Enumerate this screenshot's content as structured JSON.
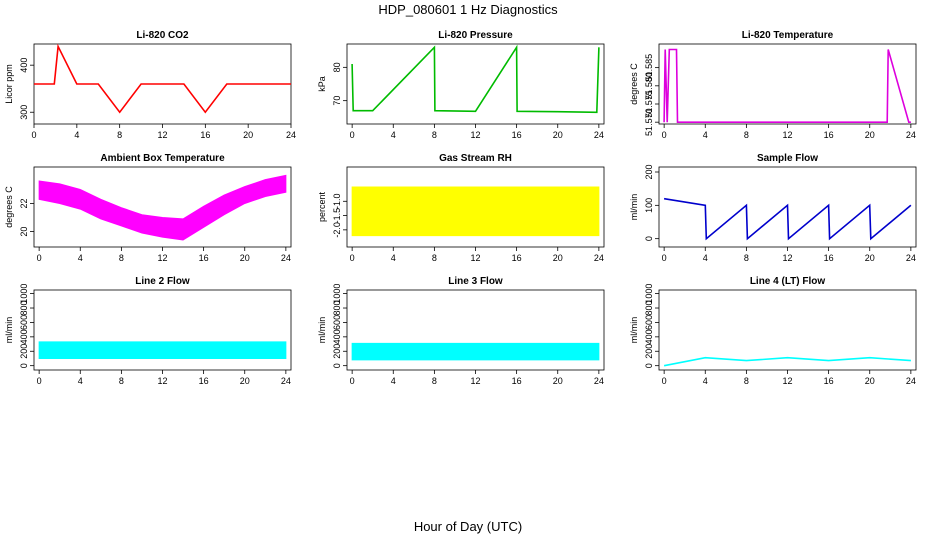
{
  "figure": {
    "title": "HDP_080601  1 Hz Diagnostics",
    "xlabel": "Hour of Day (UTC)"
  },
  "chart_data": [
    {
      "type": "line",
      "title": "Li-820 CO2",
      "xlabel": "",
      "ylabel": "Licor ppm",
      "color": "#ff0000",
      "xlim": [
        0,
        24
      ],
      "ylim": [
        275,
        445
      ],
      "xticks": [
        "0",
        "4",
        "8",
        "12",
        "16",
        "20",
        "24"
      ],
      "yticks": [
        "300",
        "400"
      ],
      "series": [
        {
          "x": [
            0,
            1.9,
            2.25,
            4,
            6,
            8,
            10,
            12,
            14,
            16,
            18,
            20,
            22,
            24
          ],
          "y": [
            360,
            360,
            440,
            360,
            360,
            300,
            360,
            360,
            360,
            300,
            360,
            360,
            360,
            360
          ]
        }
      ]
    },
    {
      "type": "line",
      "title": "Li-820 Pressure",
      "xlabel": "",
      "ylabel": "kPa",
      "color": "#00bb00",
      "xlim": [
        -0.5,
        24.5
      ],
      "ylim": [
        63,
        87
      ],
      "xticks": [
        "0",
        "4",
        "8",
        "12",
        "16",
        "20",
        "24"
      ],
      "yticks": [
        "70",
        "80"
      ],
      "series": [
        {
          "x": [
            0,
            0.1,
            2,
            8,
            8.05,
            12,
            16,
            16.05,
            20,
            23.8,
            24
          ],
          "y": [
            81,
            67,
            67,
            86,
            67,
            66.8,
            86,
            66.8,
            66.7,
            66.5,
            86
          ]
        }
      ]
    },
    {
      "type": "line",
      "title": "Li-820 Temperature",
      "xlabel": "",
      "ylabel": "degrees C",
      "color": "#dd00dd",
      "xlim": [
        -0.5,
        24.5
      ],
      "ylim": [
        51.5695,
        51.5915
      ],
      "xticks": [
        "0",
        "4",
        "8",
        "12",
        "16",
        "20",
        "24"
      ],
      "yticks": [
        "51.570",
        "51.575",
        "51.580",
        "51.585"
      ],
      "series": [
        {
          "x": [
            0,
            0.1,
            0.3,
            0.5,
            1.2,
            1.3,
            21.7,
            21.8,
            23.8,
            24
          ],
          "y": [
            51.57,
            51.59,
            51.57,
            51.59,
            51.59,
            51.57,
            51.57,
            51.59,
            51.57,
            51.57
          ]
        }
      ]
    },
    {
      "type": "area",
      "title": "Ambient Box Temperature",
      "xlabel": "",
      "ylabel": "degrees C",
      "color": "#ff00ff",
      "xlim": [
        -0.5,
        24.5
      ],
      "ylim": [
        18.9,
        24.6
      ],
      "xticks": [
        "0",
        "4",
        "8",
        "12",
        "16",
        "20",
        "24"
      ],
      "yticks": [
        "20",
        "22"
      ],
      "series": [
        {
          "x": [
            0,
            2,
            4,
            6,
            8,
            10,
            12,
            14,
            16,
            18,
            20,
            22,
            24
          ],
          "y_low": [
            22.3,
            22.0,
            21.6,
            20.9,
            20.4,
            19.9,
            19.6,
            19.4,
            20.3,
            21.2,
            22.0,
            22.5,
            22.8
          ],
          "y_high": [
            23.6,
            23.4,
            23.0,
            22.3,
            21.7,
            21.2,
            21.0,
            20.9,
            21.8,
            22.6,
            23.2,
            23.7,
            24.0
          ]
        }
      ]
    },
    {
      "type": "area",
      "title": "Gas Stream RH",
      "xlabel": "",
      "ylabel": "percent",
      "color": "#ffff00",
      "xlim": [
        -0.5,
        24.5
      ],
      "ylim": [
        -2.6,
        0.2
      ],
      "xticks": [
        "0",
        "4",
        "8",
        "12",
        "16",
        "20",
        "24"
      ],
      "yticks": [
        "-2.0",
        "-1.5",
        "-1.0"
      ],
      "series": [
        {
          "x": [
            0,
            24
          ],
          "y_low": [
            -2.2,
            -2.2
          ],
          "y_high": [
            -0.5,
            -0.5
          ]
        }
      ]
    },
    {
      "type": "line",
      "title": "Sample Flow",
      "xlabel": "",
      "ylabel": "ml/min",
      "color": "#0000cc",
      "xlim": [
        -0.5,
        24.5
      ],
      "ylim": [
        -25,
        215
      ],
      "xticks": [
        "0",
        "4",
        "8",
        "12",
        "16",
        "20",
        "24"
      ],
      "yticks": [
        "0",
        "100",
        "200"
      ],
      "series": [
        {
          "x": [
            0,
            4,
            4.1,
            8,
            8.1,
            12,
            12.1,
            16,
            16.1,
            20,
            20.1,
            24
          ],
          "y": [
            120,
            100,
            0,
            100,
            0,
            100,
            0,
            100,
            0,
            100,
            0,
            100
          ]
        }
      ]
    },
    {
      "type": "area",
      "title": "Line 2 Flow",
      "xlabel": "",
      "ylabel": "ml/min",
      "color": "#00ffff",
      "xlim": [
        -0.5,
        24.5
      ],
      "ylim": [
        -60,
        1050
      ],
      "xticks": [
        "0",
        "4",
        "8",
        "12",
        "16",
        "20",
        "24"
      ],
      "yticks": [
        "0",
        "200",
        "400",
        "600",
        "800",
        "1000"
      ],
      "series": [
        {
          "x": [
            0,
            24
          ],
          "y_low": [
            100,
            100
          ],
          "y_high": [
            330,
            330
          ]
        }
      ]
    },
    {
      "type": "area",
      "title": "Line 3 Flow",
      "xlabel": "",
      "ylabel": "ml/min",
      "color": "#00ffff",
      "xlim": [
        -0.5,
        24.5
      ],
      "ylim": [
        -60,
        1050
      ],
      "xticks": [
        "0",
        "4",
        "8",
        "12",
        "16",
        "20",
        "24"
      ],
      "yticks": [
        "0",
        "200",
        "400",
        "600",
        "800",
        "1000"
      ],
      "series": [
        {
          "x": [
            0,
            24
          ],
          "y_low": [
            80,
            80
          ],
          "y_high": [
            310,
            310
          ]
        }
      ]
    },
    {
      "type": "line",
      "title": "Line 4 (LT) Flow",
      "xlabel": "",
      "ylabel": "ml/min",
      "color": "#00ffff",
      "xlim": [
        -0.5,
        24.5
      ],
      "ylim": [
        -60,
        1050
      ],
      "xticks": [
        "0",
        "4",
        "8",
        "12",
        "16",
        "20",
        "24"
      ],
      "yticks": [
        "0",
        "200",
        "400",
        "600",
        "800",
        "1000"
      ],
      "series": [
        {
          "x": [
            0,
            4,
            8,
            12,
            16,
            20,
            24
          ],
          "y": [
            0,
            110,
            70,
            110,
            70,
            110,
            70
          ]
        }
      ]
    }
  ]
}
